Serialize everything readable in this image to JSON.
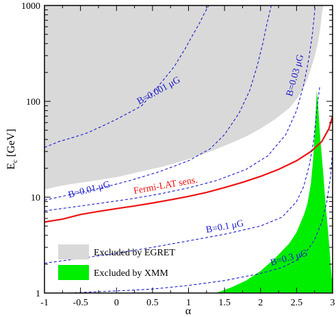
{
  "chart_data": {
    "type": "area",
    "title": "",
    "xlabel": "α",
    "ylabel": "E",
    "ylabel_sub": "c",
    "ylabel_unit": " [GeV]",
    "xlim": [
      -1,
      3
    ],
    "ylim": [
      1,
      1000
    ],
    "y_scale": "log",
    "grid": false,
    "x_ticks": [
      -1,
      -0.5,
      0,
      0.5,
      1,
      1.5,
      2,
      2.5,
      3
    ],
    "x_tick_labels": [
      "-1",
      "-0.5",
      "0",
      "0.5",
      "1",
      "1.5",
      "2",
      "2.5",
      "3"
    ],
    "y_ticks": [
      1,
      10,
      100,
      1000
    ],
    "y_tick_labels": [
      "1",
      "10",
      "100",
      "1000"
    ],
    "legend": {
      "position": "bottom-left",
      "entries": [
        {
          "label": "Excluded by EGRET",
          "color": "#d9d9d9"
        },
        {
          "label": "Excluded by XMM",
          "color": "#00ee00"
        }
      ]
    },
    "regions": [
      {
        "name": "Excluded by EGRET",
        "color": "#d9d9d9",
        "boundary": {
          "x": [
            -1,
            -0.8,
            -0.6,
            -0.4,
            -0.2,
            0,
            0.2,
            0.4,
            0.6,
            0.8,
            1.0,
            1.2,
            1.4,
            1.6,
            1.8,
            2.0,
            2.2,
            2.4,
            2.5,
            2.6,
            2.65,
            2.7,
            2.75,
            2.8,
            2.83,
            2.85,
            2.87
          ],
          "y": [
            12,
            13,
            13.8,
            14.5,
            15.3,
            16.2,
            17.5,
            19,
            20.5,
            22.5,
            25,
            28,
            32,
            37,
            43,
            52,
            65,
            85,
            105,
            140,
            170,
            220,
            290,
            420,
            580,
            800,
            1000
          ]
        }
      },
      {
        "name": "Excluded by XMM",
        "color": "#00ee00",
        "left_edge": {
          "x": [
            1.38,
            1.6,
            1.8,
            2.0,
            2.2,
            2.4,
            2.5,
            2.6,
            2.65,
            2.7,
            2.73,
            2.76,
            2.78
          ],
          "y": [
            1,
            1.15,
            1.35,
            1.7,
            2.3,
            3.3,
            4.3,
            6.5,
            8.5,
            14,
            25,
            60,
            130
          ]
        },
        "right_edge": {
          "x": [
            2.78,
            2.8,
            2.83,
            2.87,
            2.9,
            2.94,
            2.97,
            2.99
          ],
          "y": [
            130,
            90,
            40,
            18,
            9,
            4.2,
            2.2,
            1.4
          ]
        }
      }
    ],
    "series": [
      {
        "name": "Fermi-LAT sens.",
        "color": "#ee1111",
        "style": "solid",
        "x": [
          -1,
          -0.75,
          -0.5,
          -0.25,
          0,
          0.25,
          0.5,
          0.75,
          1.0,
          1.25,
          1.5,
          1.75,
          2.0,
          2.25,
          2.5,
          2.7,
          2.85,
          2.95,
          3.0
        ],
        "y": [
          5.5,
          5.9,
          6.6,
          7.1,
          7.6,
          8.1,
          8.7,
          9.4,
          10.2,
          11.2,
          12.6,
          14.3,
          16.5,
          19.5,
          24,
          30,
          38,
          52,
          70
        ]
      },
      {
        "name": "B=0.001 μG",
        "color": "#1a1acc",
        "style": "dashed",
        "x": [
          -1,
          -0.8,
          -0.6,
          -0.4,
          -0.2,
          0,
          0.2,
          0.35,
          0.45,
          0.6,
          0.8,
          0.95,
          1.05,
          1.15,
          1.22,
          1.28
        ],
        "y": [
          33,
          38,
          42,
          47,
          55,
          65,
          78,
          90,
          110,
          150,
          230,
          350,
          480,
          650,
          830,
          1000
        ]
      },
      {
        "name": "B=0.01 μG",
        "color": "#1a1acc",
        "style": "dashed",
        "x": [
          -1,
          -0.6,
          -0.2,
          0.2,
          0.6,
          1.0,
          1.3,
          1.5,
          1.7,
          1.85,
          1.95,
          2.03,
          2.09,
          2.15
        ],
        "y": [
          9.3,
          10.8,
          12.5,
          15,
          18.5,
          24,
          32,
          45,
          75,
          130,
          230,
          400,
          650,
          1000
        ]
      },
      {
        "name": "B=0.03 μG",
        "color": "#1a1acc",
        "style": "dashed",
        "x": [
          -1,
          -0.6,
          -0.2,
          0.2,
          0.6,
          1.0,
          1.4,
          1.8,
          2.1,
          2.35,
          2.5,
          2.6,
          2.67,
          2.72,
          2.76
        ],
        "y": [
          7.2,
          7.9,
          8.7,
          9.6,
          10.8,
          12.5,
          15,
          19.5,
          27,
          45,
          80,
          150,
          280,
          500,
          1000
        ]
      },
      {
        "name": "B=0.1 μG",
        "color": "#1a1acc",
        "style": "dashed",
        "x": [
          -1,
          -0.5,
          0,
          0.5,
          1.0,
          1.5,
          2.0,
          2.3,
          2.5,
          2.6,
          2.68,
          2.74,
          2.78,
          2.82
        ],
        "y": [
          2.05,
          2.3,
          2.6,
          3.0,
          3.5,
          4.1,
          5.0,
          6.2,
          9,
          13,
          22,
          40,
          80,
          140
        ]
      },
      {
        "name": "B=0.3 μG",
        "color": "#1a1acc",
        "style": "dashed",
        "x": [
          -0.65,
          -0.3,
          0,
          0.5,
          1.0,
          1.5,
          2.0,
          2.3,
          2.5,
          2.65,
          2.75,
          2.85,
          2.92,
          2.97,
          3.0
        ],
        "y": [
          1.0,
          1.03,
          1.05,
          1.1,
          1.2,
          1.35,
          1.6,
          1.85,
          2.2,
          2.8,
          3.6,
          5.5,
          9,
          16,
          30
        ]
      }
    ],
    "annotations": [
      {
        "text": "B=0.001 μG",
        "series": "B=0.001 μG",
        "color": "#1a1acc"
      },
      {
        "text": "B=0.01 μG",
        "series": "B=0.01 μG",
        "color": "#1a1acc"
      },
      {
        "text": "B=0.03 μG",
        "series": "B=0.03 μG",
        "color": "#1a1acc"
      },
      {
        "text": "B=0.1 μG",
        "series": "B=0.1 μG",
        "color": "#1a1acc"
      },
      {
        "text": "B=0.3 μG",
        "series": "B=0.3 μG",
        "color": "#1a1acc"
      },
      {
        "text": "Fermi-LAT sens.",
        "series": "Fermi-LAT sens.",
        "color": "#ee1111"
      }
    ]
  }
}
